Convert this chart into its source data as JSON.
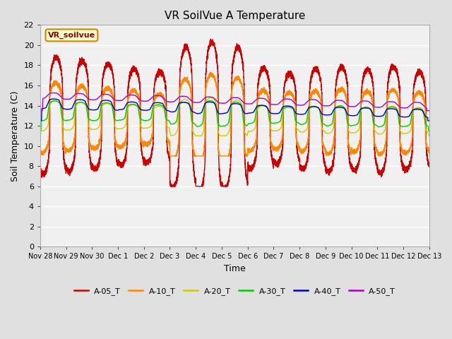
{
  "title": "VR SoilVue A Temperature",
  "xlabel": "Time",
  "ylabel": "Soil Temperature (C)",
  "ylim": [
    0,
    22
  ],
  "yticks": [
    0,
    2,
    4,
    6,
    8,
    10,
    12,
    14,
    16,
    18,
    20,
    22
  ],
  "xtick_labels": [
    "Nov 28",
    "Nov 29",
    "Nov 30",
    "Dec 1",
    "Dec 2",
    "Dec 3",
    "Dec 4",
    "Dec 5",
    "Dec 6",
    "Dec 7",
    "Dec 8",
    "Dec 9",
    "Dec 10",
    "Dec 11",
    "Dec 12",
    "Dec 13"
  ],
  "annotation_box": "VR_soilvue",
  "background_color": "#e0e0e0",
  "plot_bg_color": "#f0f0f0",
  "grid_color": "#ffffff",
  "legend_colors": [
    "#cc0000",
    "#ff8800",
    "#cccc00",
    "#00cc00",
    "#0000cc",
    "#aa00cc"
  ],
  "legend_labels": [
    "A-05_T",
    "A-10_T",
    "A-20_T",
    "A-30_T",
    "A-40_T",
    "A-50_T"
  ]
}
